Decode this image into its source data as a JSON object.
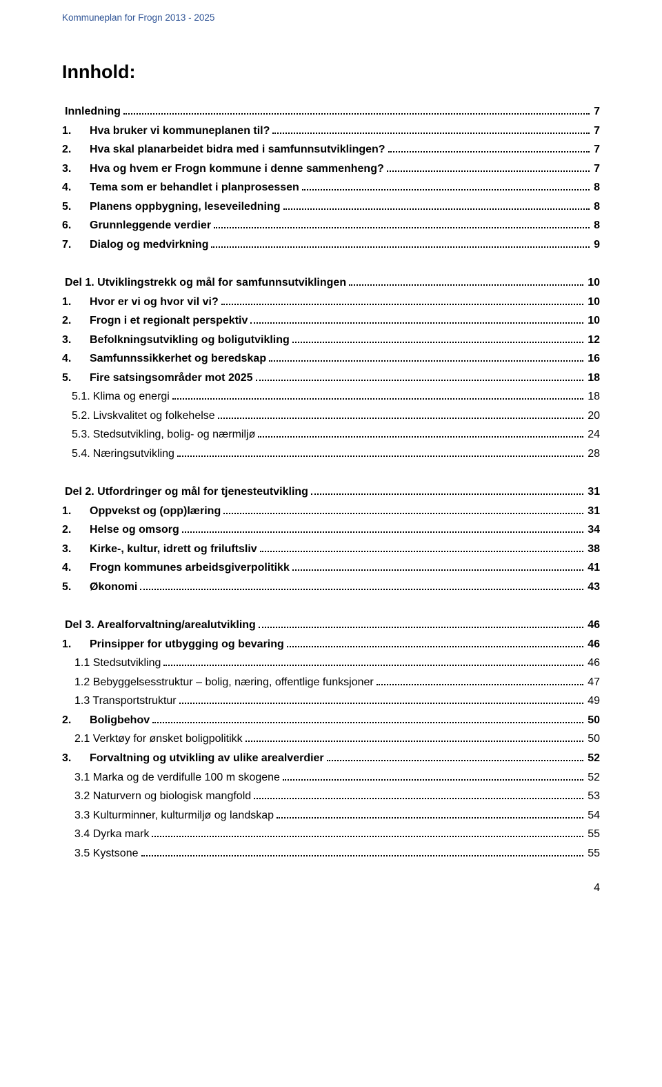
{
  "header": "Kommuneplan for Frogn 2013 - 2025",
  "title": "Innhold:",
  "blocks": [
    {
      "items": [
        {
          "num": "",
          "text": "Innledning",
          "page": "7",
          "bold": true,
          "indent": 0
        },
        {
          "num": "1.",
          "text": "Hva bruker vi kommuneplanen til?",
          "page": "7",
          "bold": true,
          "indent": 0
        },
        {
          "num": "2.",
          "text": "Hva skal planarbeidet bidra med i samfunnsutviklingen?",
          "page": "7",
          "bold": true,
          "indent": 0
        },
        {
          "num": "3.",
          "text": "Hva og hvem er Frogn kommune i denne sammenheng?",
          "page": "7",
          "bold": true,
          "indent": 0
        },
        {
          "num": "4.",
          "text": "Tema som er behandlet i planprosessen",
          "page": "8",
          "bold": true,
          "indent": 0
        },
        {
          "num": "5.",
          "text": "Planens oppbygning, leseveiledning",
          "page": "8",
          "bold": true,
          "indent": 0
        },
        {
          "num": "6.",
          "text": "Grunnleggende verdier",
          "page": "8",
          "bold": true,
          "indent": 0
        },
        {
          "num": "7.",
          "text": "Dialog og medvirkning",
          "page": "9",
          "bold": true,
          "indent": 0
        }
      ]
    },
    {
      "items": [
        {
          "num": "",
          "text": "Del 1. Utviklingstrekk og mål for samfunnsutviklingen",
          "page": "10",
          "bold": true,
          "indent": 0
        },
        {
          "num": "1.",
          "text": "Hvor er vi og hvor vil vi?",
          "page": "10",
          "bold": true,
          "indent": 0
        },
        {
          "num": "2.",
          "text": "Frogn i et regionalt perspektiv",
          "page": "10",
          "bold": true,
          "indent": 0
        },
        {
          "num": "3.",
          "text": "Befolkningsutvikling og boligutvikling",
          "page": "12",
          "bold": true,
          "indent": 0
        },
        {
          "num": "4.",
          "text": "Samfunnssikkerhet og beredskap",
          "page": "16",
          "bold": true,
          "indent": 0
        },
        {
          "num": "5.",
          "text": "Fire satsingsområder mot 2025",
          "page": "18",
          "bold": true,
          "indent": 0
        },
        {
          "num": "5.1.",
          "text": "Klima og energi",
          "page": "18",
          "bold": false,
          "indent": 1
        },
        {
          "num": "5.2.",
          "text": "Livskvalitet og folkehelse",
          "page": "20",
          "bold": false,
          "indent": 1
        },
        {
          "num": "5.3.",
          "text": "Stedsutvikling, bolig- og nærmiljø",
          "page": "24",
          "bold": false,
          "indent": 1
        },
        {
          "num": "5.4.",
          "text": "Næringsutvikling",
          "page": "28",
          "bold": false,
          "indent": 1
        }
      ]
    },
    {
      "items": [
        {
          "num": "",
          "text": "Del 2. Utfordringer og mål for tjenesteutvikling",
          "page": "31",
          "bold": true,
          "indent": 0
        },
        {
          "num": "1.",
          "text": "Oppvekst og (opp)læring",
          "page": "31",
          "bold": true,
          "indent": 0
        },
        {
          "num": "2.",
          "text": "Helse og omsorg",
          "page": "34",
          "bold": true,
          "indent": 0
        },
        {
          "num": "3.",
          "text": "Kirke-, kultur, idrett og friluftsliv",
          "page": "38",
          "bold": true,
          "indent": 0
        },
        {
          "num": "4.",
          "text": "Frogn kommunes arbeidsgiverpolitikk",
          "page": "41",
          "bold": true,
          "indent": 0
        },
        {
          "num": "5.",
          "text": "Økonomi",
          "page": "43",
          "bold": true,
          "indent": 0
        }
      ]
    },
    {
      "items": [
        {
          "num": "",
          "text": "Del 3. Arealforvaltning/arealutvikling",
          "page": "46",
          "bold": true,
          "indent": 0
        },
        {
          "num": "1.",
          "text": "Prinsipper for utbygging og bevaring",
          "page": "46",
          "bold": true,
          "indent": 0
        },
        {
          "num": "",
          "text": "1.1 Stedsutvikling",
          "page": "46",
          "bold": false,
          "indent": 1
        },
        {
          "num": "",
          "text": "1.2 Bebyggelsesstruktur – bolig, næring, offentlige funksjoner",
          "page": "47",
          "bold": false,
          "indent": 1
        },
        {
          "num": "",
          "text": "1.3 Transportstruktur",
          "page": "49",
          "bold": false,
          "indent": 1
        },
        {
          "num": "2.",
          "text": "Boligbehov",
          "page": "50",
          "bold": true,
          "indent": 0
        },
        {
          "num": "",
          "text": "2.1 Verktøy for ønsket boligpolitikk",
          "page": "50",
          "bold": false,
          "indent": 1
        },
        {
          "num": "3.",
          "text": "Forvaltning og utvikling av ulike arealverdier",
          "page": "52",
          "bold": true,
          "indent": 0
        },
        {
          "num": "",
          "text": "3.1 Marka og de verdifulle 100 m skogene",
          "page": "52",
          "bold": false,
          "indent": 1
        },
        {
          "num": "",
          "text": "3.2 Naturvern og biologisk mangfold",
          "page": "53",
          "bold": false,
          "indent": 1
        },
        {
          "num": "",
          "text": "3.3 Kulturminner, kulturmiljø og landskap",
          "page": "54",
          "bold": false,
          "indent": 1
        },
        {
          "num": "",
          "text": "3.4 Dyrka mark",
          "page": "55",
          "bold": false,
          "indent": 1
        },
        {
          "num": "",
          "text": "3.5 Kystsone",
          "page": "55",
          "bold": false,
          "indent": 1
        }
      ]
    }
  ],
  "footerPage": "4"
}
